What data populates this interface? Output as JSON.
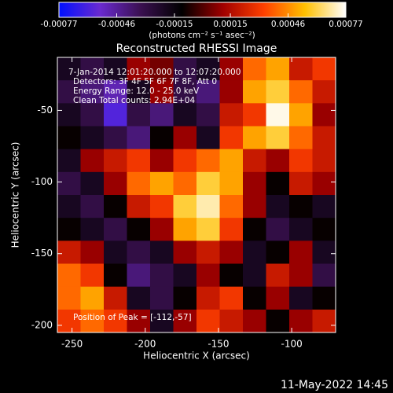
{
  "chart_data": {
    "type": "heatmap",
    "title": "Reconstructed RHESSI Image",
    "x_label": "Heliocentric X (arcsec)",
    "y_label": "Heliocentric Y (arcsec)",
    "colorbar_label": "(photons cm⁻² s⁻¹ asec⁻²)",
    "annotations": [
      "7-Jan-2014 12:01:20.000 to 12:07:20.000",
      "Detectors: 3F 4F 5F 6F 7F 8F, Att 0",
      "Energy Range: 12.0 - 25.0 keV",
      "Clean     Total counts: 2.94E+04"
    ],
    "peak_note": "Position of Peak = [-112,-57]",
    "timestamp": "11-May-2022 14:45",
    "xlim": [
      -260,
      -70
    ],
    "ylim": [
      -205,
      -13
    ],
    "xticks": [
      -250,
      -200,
      -150,
      -100
    ],
    "yticks": [
      -50,
      -100,
      -150,
      -200
    ],
    "clim": [
      -0.00077,
      0.00077
    ],
    "cticks": [
      -0.00077,
      -0.00046,
      -0.00015,
      0.00015,
      0.00046,
      0.00077
    ],
    "colors": [
      "#0010ff",
      "#6a2ad0",
      "#3a1050",
      "#000000",
      "#a00000",
      "#ff4000",
      "#ffc000",
      "#ffffff"
    ],
    "values": [
      [
        -0.0002,
        -0.0003,
        -0.0002,
        0.0001,
        5e-05,
        -0.0003,
        -0.0002,
        0.0001,
        0.0004,
        0.0005,
        0.0002,
        0.0003
      ],
      [
        -0.0003,
        -0.0004,
        -0.0005,
        -0.0002,
        0.0001,
        -0.0003,
        -0.0004,
        0.0001,
        0.0005,
        0.0006,
        0.0004,
        0.0002
      ],
      [
        -0.0002,
        -0.0003,
        -0.0006,
        -0.0003,
        -0.0004,
        -0.0002,
        -0.0003,
        0.0002,
        0.0003,
        0.00075,
        0.0005,
        0.0001
      ],
      [
        -0.0001,
        -0.0002,
        -0.0003,
        -0.0004,
        -0.0001,
        0.0001,
        -0.0002,
        0.0003,
        0.0005,
        0.0006,
        0.0004,
        0.0002
      ],
      [
        -0.0002,
        0.0001,
        0.0002,
        0.0003,
        0.0001,
        0.0003,
        0.0004,
        0.0005,
        0.0002,
        0.0001,
        0.0003,
        0.0002
      ],
      [
        -0.0003,
        -0.0002,
        0.0001,
        0.0004,
        0.0005,
        0.0004,
        0.0006,
        0.0005,
        0.0001,
        -0.0001,
        0.0002,
        0.0001
      ],
      [
        -0.0002,
        -0.0003,
        -0.0001,
        0.0002,
        0.0003,
        0.0006,
        0.0007,
        0.0004,
        0.0001,
        -0.0002,
        -0.0001,
        -0.0002
      ],
      [
        -0.0001,
        -0.0002,
        -0.0003,
        -0.0001,
        0.0001,
        0.0005,
        0.0006,
        0.0003,
        -0.0001,
        -0.0003,
        -0.0002,
        -0.0001
      ],
      [
        0.0002,
        0.0001,
        -0.0002,
        -0.0003,
        -0.0002,
        0.0001,
        0.0002,
        0.0001,
        -0.0002,
        -0.0001,
        0.0001,
        -0.0002
      ],
      [
        0.0004,
        0.0003,
        -0.0001,
        -0.0004,
        -0.0003,
        -0.0002,
        0.0001,
        -0.0001,
        -0.0002,
        0.0002,
        0.0001,
        -0.0003
      ],
      [
        0.0004,
        0.0005,
        0.0002,
        -0.0002,
        -0.0003,
        -0.0001,
        0.0002,
        0.0003,
        -0.0001,
        0.0001,
        -0.0002,
        -0.0001
      ],
      [
        0.0003,
        0.0004,
        0.0003,
        0.0001,
        -0.0002,
        0.0001,
        0.0003,
        0.0002,
        0.0001,
        -0.0001,
        0.0001,
        0.0002
      ]
    ]
  }
}
